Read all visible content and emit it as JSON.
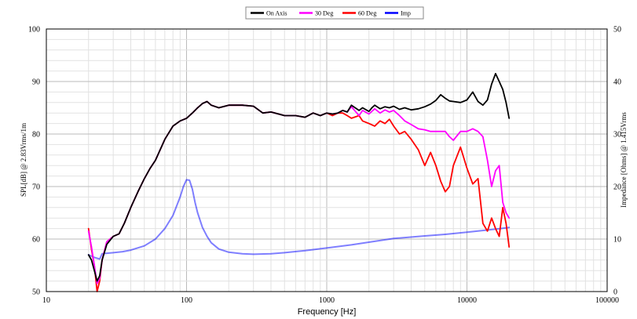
{
  "chart_data": {
    "type": "line",
    "xlabel": "Frequency [Hz]",
    "ylabel_left": "SPL[dB] @ 2.83Vrms/1m",
    "ylabel_right": "Impedance [Ohms] @ 1.415Vrms",
    "x_scale": "log",
    "xlim": [
      10,
      100000
    ],
    "ylim_left": [
      50,
      100
    ],
    "ylim_right": [
      0,
      50
    ],
    "x_ticks": [
      "10",
      "100",
      "1000",
      "10000",
      "100000"
    ],
    "y_ticks_left": [
      "50",
      "60",
      "70",
      "80",
      "90",
      "100"
    ],
    "y_ticks_right": [
      "0",
      "10",
      "20",
      "30",
      "40",
      "50"
    ],
    "grid": true,
    "legend_position": "top-center",
    "series": [
      {
        "name": "On Axis",
        "color": "#000000",
        "axis": "left",
        "x": [
          20,
          21,
          22,
          23,
          24,
          25,
          27,
          30,
          33,
          36,
          40,
          45,
          50,
          55,
          60,
          70,
          80,
          90,
          100,
          110,
          120,
          130,
          140,
          150,
          170,
          200,
          250,
          300,
          350,
          400,
          500,
          600,
          700,
          800,
          900,
          1000,
          1100,
          1200,
          1300,
          1400,
          1500,
          1700,
          1800,
          2000,
          2100,
          2200,
          2400,
          2600,
          2800,
          3000,
          3300,
          3600,
          4000,
          4500,
          5000,
          5500,
          6000,
          6500,
          7000,
          7500,
          8000,
          9000,
          10000,
          11000,
          12000,
          13000,
          14000,
          15000,
          16000,
          17000,
          18000,
          19000,
          20000
        ],
        "values": [
          57,
          56,
          54,
          52,
          53,
          56,
          59,
          60.5,
          61,
          63,
          66,
          69,
          71.5,
          73.5,
          75,
          79,
          81.5,
          82.5,
          83,
          84,
          85,
          85.8,
          86.2,
          85.5,
          85,
          85.5,
          85.5,
          85.3,
          84,
          84.2,
          83.5,
          83.5,
          83.2,
          84,
          83.5,
          84,
          83.8,
          84,
          84.5,
          84.2,
          85.5,
          84.5,
          85,
          84.3,
          85,
          85.5,
          84.8,
          85.2,
          85,
          85.3,
          84.7,
          85,
          84.6,
          84.8,
          85.2,
          85.7,
          86.4,
          87.5,
          86.8,
          86.3,
          86.2,
          86,
          86.5,
          88,
          86.2,
          85.5,
          86.5,
          89.5,
          91.5,
          90,
          88.5,
          86,
          83
        ]
      },
      {
        "name": "30 Deg",
        "color": "#ff00ff",
        "axis": "left",
        "x": [
          20,
          21,
          22,
          23,
          24,
          25,
          27,
          30,
          33,
          36,
          40,
          45,
          50,
          55,
          60,
          70,
          80,
          90,
          100,
          110,
          120,
          130,
          140,
          150,
          170,
          200,
          250,
          300,
          350,
          400,
          500,
          600,
          700,
          800,
          900,
          1000,
          1100,
          1200,
          1300,
          1400,
          1500,
          1700,
          1800,
          2000,
          2200,
          2400,
          2600,
          2800,
          3000,
          3300,
          3600,
          4000,
          4500,
          5000,
          5500,
          6000,
          6500,
          7000,
          7500,
          8000,
          9000,
          10000,
          11000,
          12000,
          13000,
          14000,
          15000,
          16000,
          17000,
          18000,
          19000,
          20000
        ],
        "values": [
          61.5,
          58.5,
          55,
          51.5,
          52.5,
          56,
          59.5,
          60.5,
          61,
          63,
          66,
          69,
          71.5,
          73.5,
          75,
          79,
          81.5,
          82.5,
          83,
          84,
          85,
          85.8,
          86.2,
          85.5,
          85,
          85.5,
          85.5,
          85.3,
          84,
          84.2,
          83.5,
          83.5,
          83.2,
          84,
          83.5,
          84,
          83.8,
          84,
          84.5,
          84.2,
          85.2,
          83.5,
          84.5,
          83.8,
          84.8,
          84,
          84.6,
          84.2,
          84.5,
          83.5,
          82.5,
          81.8,
          81,
          80.8,
          80.5,
          80.5,
          80.5,
          80.5,
          79.5,
          78.8,
          80.5,
          80.5,
          81,
          80.5,
          79.5,
          75,
          70,
          73,
          74,
          67,
          65,
          64
        ]
      },
      {
        "name": "60 Deg",
        "color": "#ff0000",
        "axis": "left",
        "x": [
          20,
          21,
          22,
          23,
          24,
          25,
          27,
          30,
          33,
          36,
          40,
          45,
          50,
          55,
          60,
          70,
          80,
          90,
          100,
          110,
          120,
          130,
          140,
          150,
          170,
          200,
          250,
          300,
          350,
          400,
          500,
          600,
          700,
          800,
          900,
          1000,
          1100,
          1200,
          1300,
          1400,
          1500,
          1700,
          1800,
          2000,
          2200,
          2400,
          2600,
          2800,
          3000,
          3300,
          3600,
          4000,
          4500,
          5000,
          5500,
          6000,
          6500,
          7000,
          7500,
          8000,
          9000,
          10000,
          11000,
          12000,
          13000,
          14000,
          15000,
          16000,
          17000,
          18000,
          19000,
          20000
        ],
        "values": [
          62,
          58,
          55,
          50,
          52,
          56,
          59.5,
          60.5,
          61,
          63,
          66,
          69,
          71.5,
          73.5,
          75,
          79,
          81.5,
          82.5,
          83,
          84,
          85,
          85.8,
          86.2,
          85.5,
          85,
          85.5,
          85.5,
          85.3,
          84,
          84.2,
          83.5,
          83.5,
          83.2,
          84,
          83.5,
          84,
          83.5,
          84,
          84,
          83.5,
          83,
          83.5,
          82.5,
          82,
          81.5,
          82.5,
          82,
          82.8,
          81.5,
          80,
          80.5,
          79,
          77,
          74,
          76.5,
          74,
          71,
          69,
          70,
          74,
          77.5,
          73.5,
          70.5,
          71.5,
          63,
          61.5,
          64,
          62,
          60.5,
          66,
          63,
          58.5
        ]
      },
      {
        "name": "Imp",
        "color": "#0000ff",
        "axis": "right",
        "x": [
          20,
          22,
          24,
          25,
          27,
          30,
          35,
          40,
          50,
          60,
          70,
          80,
          90,
          95,
          100,
          105,
          110,
          115,
          120,
          130,
          140,
          150,
          170,
          200,
          250,
          300,
          400,
          500,
          700,
          1000,
          1500,
          2000,
          3000,
          5000,
          7000,
          10000,
          15000,
          20000
        ],
        "values": [
          7,
          6.5,
          6.2,
          7.2,
          7.3,
          7.4,
          7.6,
          7.9,
          8.7,
          10,
          12,
          14.5,
          18,
          20,
          21.3,
          21.2,
          19.5,
          17,
          15,
          12.2,
          10.5,
          9.3,
          8.1,
          7.5,
          7.2,
          7.1,
          7.2,
          7.4,
          7.8,
          8.3,
          8.9,
          9.4,
          10.1,
          10.6,
          10.9,
          11.3,
          11.8,
          12.2
        ]
      }
    ]
  }
}
